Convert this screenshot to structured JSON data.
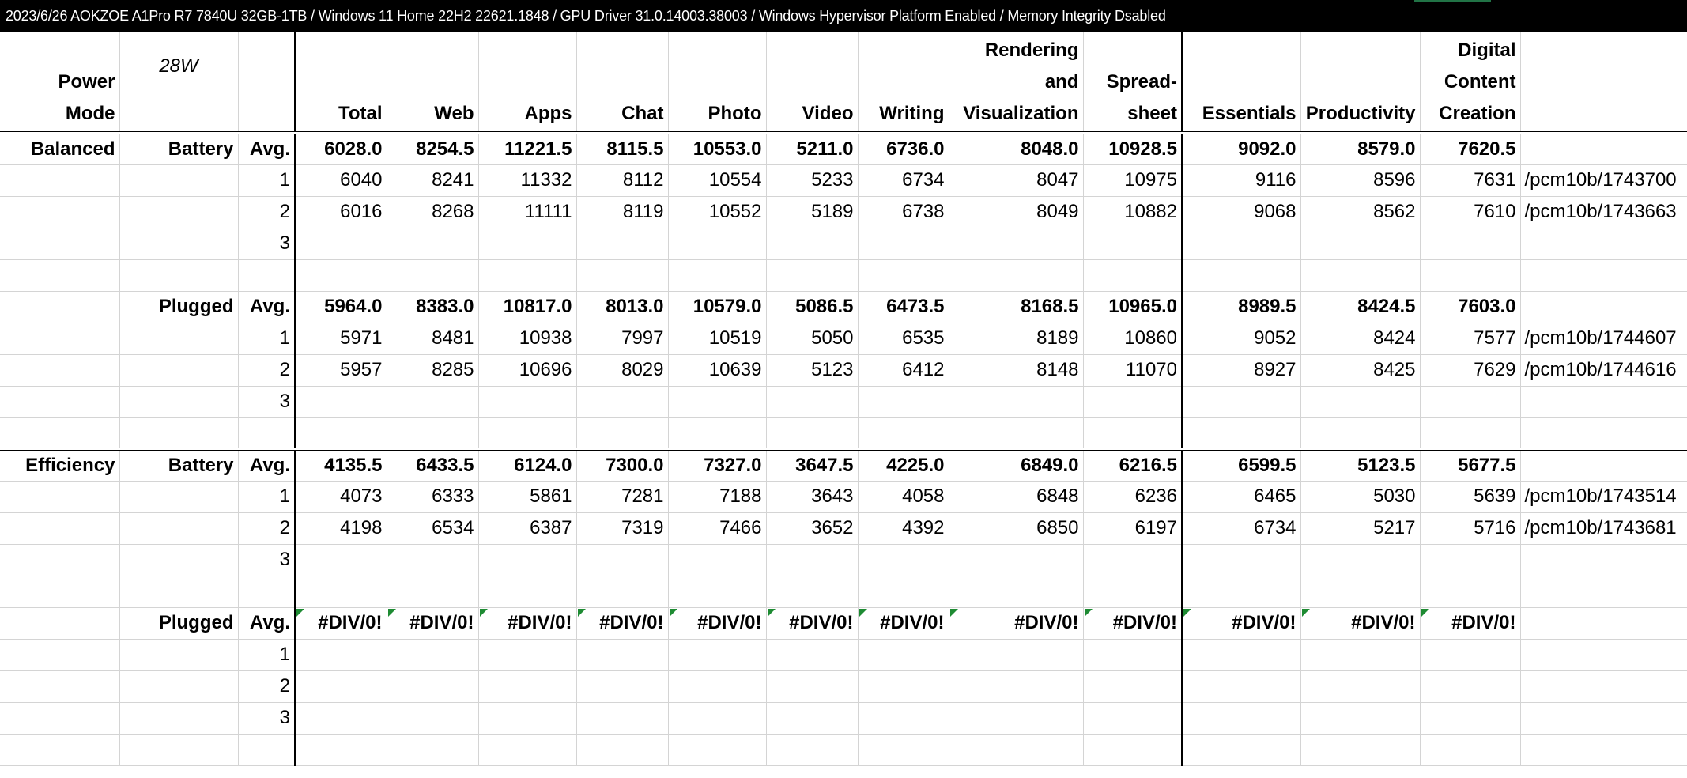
{
  "title_bar": "2023/6/26 AOKZOE A1Pro R7 7840U 32GB-1TB / Windows 11 Home 22H2 22621.1848 / GPU Driver 31.0.14003.38003 / Windows Hypervisor Platform Enabled / Memory Integrity Dsabled",
  "header": {
    "power_mode": "Power Mode",
    "wattage": "28W",
    "columns": [
      "Total",
      "Web",
      "Apps",
      "Chat",
      "Photo",
      "Video",
      "Writing",
      "Rendering and Visualization",
      "Spread-sheet",
      "Essentials",
      "Productivity",
      "Digital Content Creation"
    ]
  },
  "rows": [
    {
      "mode": "Balanced",
      "source": "Battery",
      "run": "Avg.",
      "bold": true,
      "values": [
        "6028.0",
        "8254.5",
        "11221.5",
        "8115.5",
        "10553.0",
        "5211.0",
        "6736.0",
        "8048.0",
        "10928.5",
        "9092.0",
        "8579.0",
        "7620.5"
      ],
      "url": ""
    },
    {
      "mode": "",
      "source": "",
      "run": "1",
      "bold": false,
      "values": [
        "6040",
        "8241",
        "11332",
        "8112",
        "10554",
        "5233",
        "6734",
        "8047",
        "10975",
        "9116",
        "8596",
        "7631"
      ],
      "url": "/pcm10b/1743700"
    },
    {
      "mode": "",
      "source": "",
      "run": "2",
      "bold": false,
      "values": [
        "6016",
        "8268",
        "11111",
        "8119",
        "10552",
        "5189",
        "6738",
        "8049",
        "10882",
        "9068",
        "8562",
        "7610"
      ],
      "url": "/pcm10b/1743663"
    },
    {
      "mode": "",
      "source": "",
      "run": "3",
      "bold": false,
      "values": [
        "",
        "",
        "",
        "",
        "",
        "",
        "",
        "",
        "",
        "",
        "",
        ""
      ],
      "url": ""
    },
    {
      "mode": "",
      "source": "",
      "run": "",
      "bold": false,
      "values": [
        "",
        "",
        "",
        "",
        "",
        "",
        "",
        "",
        "",
        "",
        "",
        ""
      ],
      "url": ""
    },
    {
      "mode": "",
      "source": "Plugged",
      "run": "Avg.",
      "bold": true,
      "values": [
        "5964.0",
        "8383.0",
        "10817.0",
        "8013.0",
        "10579.0",
        "5086.5",
        "6473.5",
        "8168.5",
        "10965.0",
        "8989.5",
        "8424.5",
        "7603.0"
      ],
      "url": ""
    },
    {
      "mode": "",
      "source": "",
      "run": "1",
      "bold": false,
      "values": [
        "5971",
        "8481",
        "10938",
        "7997",
        "10519",
        "5050",
        "6535",
        "8189",
        "10860",
        "9052",
        "8424",
        "7577"
      ],
      "url": "/pcm10b/1744607"
    },
    {
      "mode": "",
      "source": "",
      "run": "2",
      "bold": false,
      "values": [
        "5957",
        "8285",
        "10696",
        "8029",
        "10639",
        "5123",
        "6412",
        "8148",
        "11070",
        "8927",
        "8425",
        "7629"
      ],
      "url": "/pcm10b/1744616"
    },
    {
      "mode": "",
      "source": "",
      "run": "3",
      "bold": false,
      "values": [
        "",
        "",
        "",
        "",
        "",
        "",
        "",
        "",
        "",
        "",
        "",
        ""
      ],
      "url": ""
    },
    {
      "mode": "",
      "source": "",
      "run": "",
      "bold": false,
      "values": [
        "",
        "",
        "",
        "",
        "",
        "",
        "",
        "",
        "",
        "",
        "",
        ""
      ],
      "url": ""
    },
    {
      "mode": "Efficiency",
      "source": "Battery",
      "run": "Avg.",
      "bold": true,
      "values": [
        "4135.5",
        "6433.5",
        "6124.0",
        "7300.0",
        "7327.0",
        "3647.5",
        "4225.0",
        "6849.0",
        "6216.5",
        "6599.5",
        "5123.5",
        "5677.5"
      ],
      "url": ""
    },
    {
      "mode": "",
      "source": "",
      "run": "1",
      "bold": false,
      "values": [
        "4073",
        "6333",
        "5861",
        "7281",
        "7188",
        "3643",
        "4058",
        "6848",
        "6236",
        "6465",
        "5030",
        "5639"
      ],
      "url": "/pcm10b/1743514"
    },
    {
      "mode": "",
      "source": "",
      "run": "2",
      "bold": false,
      "values": [
        "4198",
        "6534",
        "6387",
        "7319",
        "7466",
        "3652",
        "4392",
        "6850",
        "6197",
        "6734",
        "5217",
        "5716"
      ],
      "url": "/pcm10b/1743681"
    },
    {
      "mode": "",
      "source": "",
      "run": "3",
      "bold": false,
      "values": [
        "",
        "",
        "",
        "",
        "",
        "",
        "",
        "",
        "",
        "",
        "",
        ""
      ],
      "url": ""
    },
    {
      "mode": "",
      "source": "",
      "run": "",
      "bold": false,
      "values": [
        "",
        "",
        "",
        "",
        "",
        "",
        "",
        "",
        "",
        "",
        "",
        ""
      ],
      "url": ""
    },
    {
      "mode": "",
      "source": "Plugged",
      "run": "Avg.",
      "bold": true,
      "error": true,
      "values": [
        "#DIV/0!",
        "#DIV/0!",
        "#DIV/0!",
        "#DIV/0!",
        "#DIV/0!",
        "#DIV/0!",
        "#DIV/0!",
        "#DIV/0!",
        "#DIV/0!",
        "#DIV/0!",
        "#DIV/0!",
        "#DIV/0!"
      ],
      "url": ""
    },
    {
      "mode": "",
      "source": "",
      "run": "1",
      "bold": false,
      "values": [
        "",
        "",
        "",
        "",
        "",
        "",
        "",
        "",
        "",
        "",
        "",
        ""
      ],
      "url": ""
    },
    {
      "mode": "",
      "source": "",
      "run": "2",
      "bold": false,
      "values": [
        "",
        "",
        "",
        "",
        "",
        "",
        "",
        "",
        "",
        "",
        "",
        ""
      ],
      "url": ""
    },
    {
      "mode": "",
      "source": "",
      "run": "3",
      "bold": false,
      "values": [
        "",
        "",
        "",
        "",
        "",
        "",
        "",
        "",
        "",
        "",
        "",
        ""
      ],
      "url": ""
    },
    {
      "mode": "",
      "source": "",
      "run": "",
      "bold": false,
      "values": [
        "",
        "",
        "",
        "",
        "",
        "",
        "",
        "",
        "",
        "",
        "",
        ""
      ],
      "url": ""
    }
  ],
  "colors": {
    "title_bg": "#000000",
    "title_fg": "#ffffff",
    "gridline": "#d4d4d4",
    "error_flag": "#1e8b33",
    "selection_edge": "#217346"
  }
}
